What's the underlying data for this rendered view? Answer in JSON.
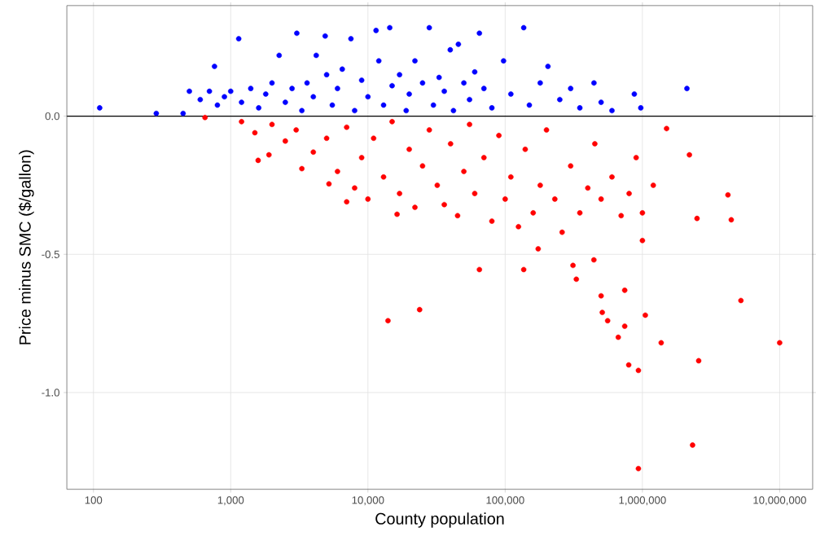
{
  "chart_data": {
    "type": "scatter",
    "xlabel": "County population",
    "ylabel": "Price minus SMC ($/gallon)",
    "log": "x",
    "grid": true,
    "marker": "circle",
    "xlim": [
      64,
      17400000
    ],
    "ylim": [
      -1.35,
      0.4
    ],
    "xticks": [
      100,
      {
        "value": 1000,
        "label": "1,000"
      },
      {
        "value": 10000,
        "label": "10,000"
      },
      {
        "value": 100000,
        "label": "100,000"
      },
      {
        "value": 1000000,
        "label": "1,000,000"
      },
      {
        "value": 10000000,
        "label": "10,000,000"
      }
    ],
    "yticks": [
      {
        "value": -1.0,
        "label": "-1.0"
      },
      {
        "value": -0.5,
        "label": "-0.5"
      },
      {
        "value": 0,
        "label": "0.0"
      }
    ],
    "ref_lines": [
      {
        "axis": "y",
        "value": 0,
        "color": "#000000"
      }
    ],
    "series": [
      {
        "color": "#0000ff",
        "x": [
          111,
          287,
          450,
          500,
          600,
          700,
          762,
          800,
          900,
          1000,
          1144,
          1200,
          1400,
          1600,
          1800,
          2000,
          2255,
          2500,
          2800,
          3032,
          3300,
          3600,
          4000,
          4200,
          4880,
          5000,
          5500,
          6000,
          6500,
          7520,
          8000,
          9000,
          10000,
          11460,
          12000,
          13000,
          14420,
          15000,
          17000,
          19000,
          20000,
          22000,
          25000,
          28000,
          30000,
          33000,
          36000,
          39800,
          42000,
          45600,
          50000,
          55000,
          60000,
          64900,
          70000,
          80000,
          97300,
          110000,
          136500,
          150000,
          180000,
          205000,
          250000,
          300000,
          350000,
          443600,
          500000,
          600000,
          873000,
          973000,
          2110000
        ],
        "values": [
          0.03,
          0.01,
          0.01,
          0.09,
          0.06,
          0.09,
          0.18,
          0.04,
          0.07,
          0.09,
          0.28,
          0.05,
          0.1,
          0.03,
          0.08,
          0.12,
          0.22,
          0.05,
          0.1,
          0.3,
          0.02,
          0.12,
          0.07,
          0.22,
          0.29,
          0.15,
          0.04,
          0.1,
          0.17,
          0.28,
          0.02,
          0.13,
          0.07,
          0.31,
          0.2,
          0.04,
          0.32,
          0.11,
          0.15,
          0.02,
          0.08,
          0.2,
          0.12,
          0.32,
          0.04,
          0.14,
          0.09,
          0.24,
          0.02,
          0.26,
          0.12,
          0.06,
          0.16,
          0.3,
          0.1,
          0.03,
          0.2,
          0.08,
          0.32,
          0.04,
          0.12,
          0.18,
          0.06,
          0.1,
          0.03,
          0.12,
          0.05,
          0.02,
          0.08,
          0.03,
          0.1
        ]
      },
      {
        "color": "#ff0000",
        "x": [
          650,
          1200,
          1500,
          1585,
          1900,
          2000,
          2500,
          3000,
          3300,
          4000,
          5000,
          5200,
          6000,
          7000,
          7000,
          8000,
          9000,
          10000,
          11000,
          13000,
          14000,
          15000,
          16300,
          17000,
          20000,
          22000,
          23800,
          25000,
          28000,
          32000,
          36000,
          40000,
          45000,
          50000,
          55000,
          60000,
          64900,
          70000,
          80000,
          90000,
          100000,
          110000,
          125000,
          136500,
          140000,
          160000,
          174000,
          180000,
          200000,
          230000,
          260000,
          300000,
          312000,
          330000,
          350000,
          400000,
          443000,
          450000,
          500000,
          500000,
          510000,
          558000,
          600000,
          667000,
          700000,
          743000,
          743000,
          795000,
          800000,
          900000,
          935000,
          935000,
          1000000,
          1000000,
          1050000,
          1200000,
          1370000,
          1500000,
          2200000,
          2320000,
          2500000,
          2570000,
          4200000,
          4440000,
          5220000,
          10000000
        ],
        "values": [
          -0.005,
          -0.02,
          -0.06,
          -0.16,
          -0.14,
          -0.03,
          -0.09,
          -0.05,
          -0.19,
          -0.13,
          -0.08,
          -0.245,
          -0.2,
          -0.04,
          -0.31,
          -0.26,
          -0.15,
          -0.3,
          -0.08,
          -0.22,
          -0.74,
          -0.02,
          -0.355,
          -0.28,
          -0.12,
          -0.33,
          -0.7,
          -0.18,
          -0.05,
          -0.25,
          -0.32,
          -0.1,
          -0.36,
          -0.2,
          -0.03,
          -0.28,
          -0.555,
          -0.15,
          -0.38,
          -0.07,
          -0.3,
          -0.22,
          -0.4,
          -0.555,
          -0.12,
          -0.35,
          -0.48,
          -0.25,
          -0.05,
          -0.3,
          -0.42,
          -0.18,
          -0.54,
          -0.59,
          -0.35,
          -0.26,
          -0.52,
          -0.1,
          -0.3,
          -0.65,
          -0.71,
          -0.74,
          -0.22,
          -0.8,
          -0.36,
          -0.63,
          -0.76,
          -0.9,
          -0.28,
          -0.15,
          -0.92,
          -1.275,
          -0.35,
          -0.45,
          -0.72,
          -0.25,
          -0.82,
          -0.045,
          -0.14,
          -1.19,
          -0.37,
          -0.885,
          -0.285,
          -0.375,
          -0.667,
          -0.82
        ]
      }
    ]
  }
}
